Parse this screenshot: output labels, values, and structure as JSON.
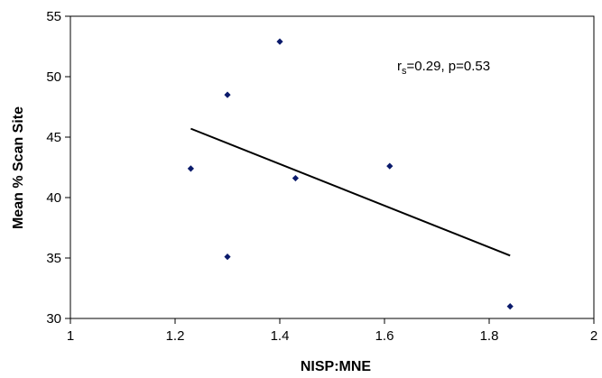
{
  "chart_data": {
    "type": "scatter",
    "title": "",
    "xlabel": "NISP:MNE",
    "ylabel": "Mean % Scan Site",
    "xlim": [
      1,
      2
    ],
    "ylim": [
      30,
      55
    ],
    "x_ticks": [
      1,
      1.2,
      1.4,
      1.6,
      1.8,
      2
    ],
    "x_tick_labels": [
      "1",
      "1.2",
      "1.4",
      "1.6",
      "1.8",
      "2"
    ],
    "y_ticks": [
      30,
      35,
      40,
      45,
      50,
      55
    ],
    "y_tick_labels": [
      "30",
      "35",
      "40",
      "45",
      "50",
      "55"
    ],
    "grid": false,
    "legend": "none",
    "marker_color": "#0a1a6b",
    "marker_shape": "diamond",
    "points": [
      {
        "x": 1.23,
        "y": 42.4
      },
      {
        "x": 1.3,
        "y": 48.5
      },
      {
        "x": 1.3,
        "y": 35.1
      },
      {
        "x": 1.4,
        "y": 52.9
      },
      {
        "x": 1.43,
        "y": 41.6
      },
      {
        "x": 1.61,
        "y": 42.6
      },
      {
        "x": 1.84,
        "y": 31.0
      }
    ],
    "trendline": {
      "x": [
        1.23,
        1.84
      ],
      "y": [
        45.7,
        35.2
      ],
      "color": "#000000"
    },
    "annotation": {
      "r_main": "r",
      "r_sub": "s",
      "rest": "=0.29, p=0.53"
    }
  }
}
